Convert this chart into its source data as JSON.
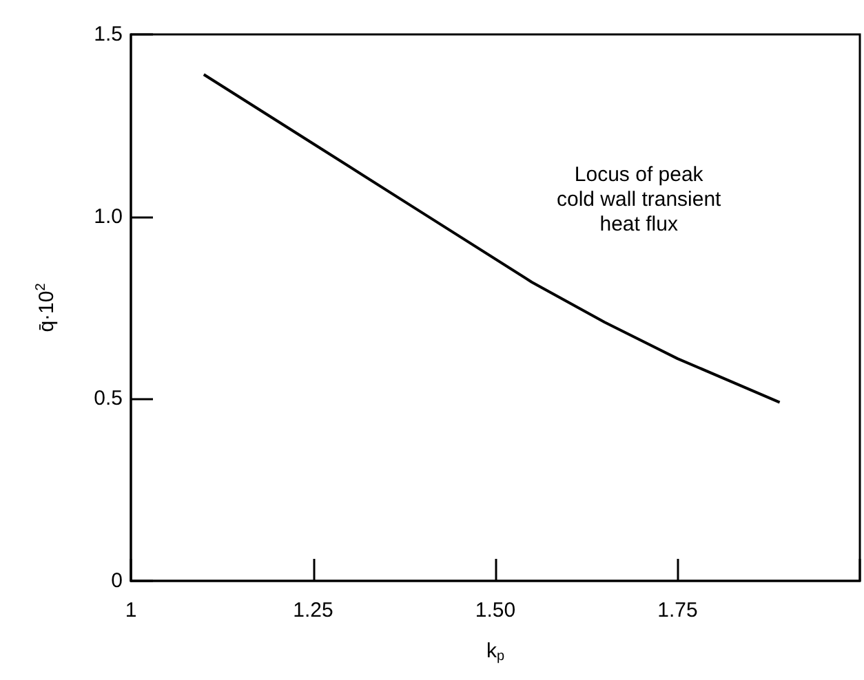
{
  "chart_data": {
    "type": "line",
    "xlabel": "k$_{p}$",
    "ylabel": "q̄·10$^{2}$",
    "x": [
      1.1,
      1.25,
      1.4,
      1.55,
      1.65,
      1.75,
      1.89
    ],
    "series": [
      {
        "color": "#000000",
        "values": [
          1.39,
          1.2,
          1.01,
          0.82,
          0.71,
          0.61,
          0.49
        ]
      }
    ],
    "xlim": [
      1,
      2
    ],
    "xticks": [
      1,
      1.25,
      {
        "value": 1.5,
        "label": "1.50"
      },
      1.75,
      {
        "value": 2,
        "label": null
      }
    ],
    "ylim": [
      0,
      1.5
    ],
    "yticks": [
      {
        "value": 0,
        "label": "0"
      },
      {
        "value": 0.5,
        "label": "0.5"
      },
      {
        "value": 1,
        "label": "1.0"
      },
      {
        "value": 1.5,
        "label": "1.5"
      }
    ],
    "annotations": [
      "Locus of peak\ncold wall transient\nheat flux"
    ],
    "grid": false,
    "marker": "none",
    "line_style": "solid"
  }
}
